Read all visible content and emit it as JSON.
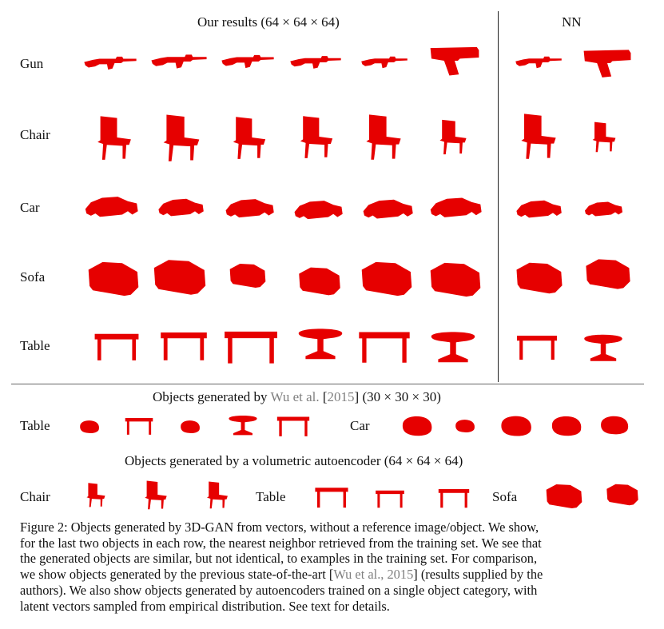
{
  "header": {
    "our_results": "Our results (64 × 64 × 64)",
    "nn": "NN"
  },
  "rows": [
    {
      "label": "Gun"
    },
    {
      "label": "Chair"
    },
    {
      "label": "Car"
    },
    {
      "label": "Sofa"
    },
    {
      "label": "Table"
    }
  ],
  "shape_color": "#e60000",
  "wu_section": {
    "prefix": "Objects generated by ",
    "cite_name": "Wu et al.",
    "cite_open": " [",
    "cite_year": "2015",
    "cite_close": "]",
    "suffix": " (30 × 30 × 30)",
    "labels": [
      "Table",
      "Car"
    ]
  },
  "ae_section": {
    "title": "Objects generated by a volumetric autoencoder (64 × 64 × 64)",
    "labels": [
      "Chair",
      "Table",
      "Sofa"
    ]
  },
  "caption": {
    "line1": "Figure 2: Objects generated by 3D-GAN from vectors, without a reference image/object. We show,",
    "line2": "for the last two objects in each row, the nearest neighbor retrieved from the training set. We see that",
    "line3": "the generated objects are similar, but not identical, to examples in the training set. For comparison,",
    "line4_a": "we show objects generated by the previous state-of-the-art [",
    "line4_cite": "Wu et al., 2015",
    "line4_b": "] (results supplied by the",
    "line5": "authors). We also show objects generated by autoencoders trained on a single object category, with",
    "line6": "latent vectors sampled from empirical distribution. See text for details."
  }
}
